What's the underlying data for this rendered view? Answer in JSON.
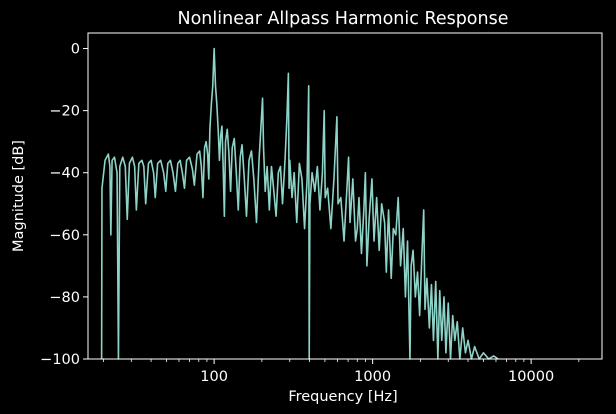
{
  "chart_data": {
    "type": "line",
    "title": "Nonlinear Allpass Harmonic Response",
    "xlabel": "Frequency [Hz]",
    "ylabel": "Magnitude [dB]",
    "xscale": "log",
    "xlim": [
      16,
      28000
    ],
    "ylim": [
      -100,
      5
    ],
    "xticks": [
      100,
      1000,
      10000
    ],
    "xtick_labels": [
      "100",
      "1000",
      "10000"
    ],
    "yticks": [
      0,
      -20,
      -40,
      -60,
      -80,
      -100
    ],
    "ytick_labels": [
      "0",
      "−20",
      "−40",
      "−60",
      "−80",
      "−100"
    ],
    "grid": false,
    "legend": null,
    "colors": {
      "background": "#000000",
      "axes": "#ffffff",
      "line": "#8dd3c7"
    },
    "series": [
      {
        "points": [
          [
            19.5,
            -100
          ],
          [
            19.6,
            -45
          ],
          [
            20.5,
            -36
          ],
          [
            21.5,
            -34
          ],
          [
            22,
            -38
          ],
          [
            22.3,
            -60
          ],
          [
            22.7,
            -36
          ],
          [
            23.5,
            -35
          ],
          [
            24.4,
            -40
          ],
          [
            24.9,
            -100
          ],
          [
            25.4,
            -38
          ],
          [
            26.5,
            -35
          ],
          [
            27.5,
            -38
          ],
          [
            28.3,
            -55
          ],
          [
            29.2,
            -37
          ],
          [
            30.5,
            -35
          ],
          [
            31.5,
            -38
          ],
          [
            32.3,
            -52
          ],
          [
            33.5,
            -37
          ],
          [
            35,
            -36
          ],
          [
            36,
            -38
          ],
          [
            37,
            -50
          ],
          [
            38.5,
            -37
          ],
          [
            40,
            -36
          ],
          [
            41.5,
            -40
          ],
          [
            42.5,
            -48
          ],
          [
            44,
            -37
          ],
          [
            46,
            -36
          ],
          [
            48,
            -40
          ],
          [
            49.5,
            -46
          ],
          [
            51,
            -37
          ],
          [
            53,
            -36
          ],
          [
            55,
            -40
          ],
          [
            57,
            -46
          ],
          [
            59,
            -37
          ],
          [
            61,
            -36
          ],
          [
            63,
            -40
          ],
          [
            65,
            -45
          ],
          [
            67,
            -36
          ],
          [
            70,
            -35
          ],
          [
            73,
            -39
          ],
          [
            75,
            -44
          ],
          [
            78,
            -34
          ],
          [
            81,
            -33
          ],
          [
            83,
            -38
          ],
          [
            85,
            -48
          ],
          [
            87,
            -32
          ],
          [
            89,
            -30
          ],
          [
            91,
            -34
          ],
          [
            92.5,
            -42
          ],
          [
            94,
            -26
          ],
          [
            96,
            -18
          ],
          [
            98,
            -12
          ],
          [
            100,
            0
          ],
          [
            102,
            -12
          ],
          [
            104,
            -18
          ],
          [
            106,
            -26
          ],
          [
            108,
            -36
          ],
          [
            110,
            -28
          ],
          [
            112,
            -25
          ],
          [
            114,
            -38
          ],
          [
            116,
            -54
          ],
          [
            118,
            -30
          ],
          [
            121,
            -26
          ],
          [
            124,
            -34
          ],
          [
            127,
            -46
          ],
          [
            130,
            -32
          ],
          [
            134,
            -29
          ],
          [
            138,
            -40
          ],
          [
            142,
            -52
          ],
          [
            146,
            -35
          ],
          [
            150,
            -31
          ],
          [
            155,
            -42
          ],
          [
            160,
            -54
          ],
          [
            166,
            -36
          ],
          [
            172,
            -33
          ],
          [
            178,
            -42
          ],
          [
            185,
            -56
          ],
          [
            192,
            -36
          ],
          [
            198,
            -24
          ],
          [
            202,
            -16
          ],
          [
            205,
            -32
          ],
          [
            210,
            -46
          ],
          [
            216,
            -38
          ],
          [
            223,
            -52
          ],
          [
            230,
            -38
          ],
          [
            238,
            -46
          ],
          [
            246,
            -54
          ],
          [
            254,
            -40
          ],
          [
            262,
            -38
          ],
          [
            270,
            -50
          ],
          [
            280,
            -36
          ],
          [
            288,
            -22
          ],
          [
            294,
            -8
          ],
          [
            297,
            -45
          ],
          [
            300,
            -36
          ],
          [
            310,
            -48
          ],
          [
            320,
            -40
          ],
          [
            332,
            -56
          ],
          [
            345,
            -37
          ],
          [
            358,
            -42
          ],
          [
            372,
            -58
          ],
          [
            386,
            -42
          ],
          [
            395,
            -12
          ],
          [
            398,
            -100
          ],
          [
            402,
            -50
          ],
          [
            415,
            -40
          ],
          [
            432,
            -46
          ],
          [
            448,
            -38
          ],
          [
            465,
            -52
          ],
          [
            482,
            -40
          ],
          [
            495,
            -20
          ],
          [
            502,
            -48
          ],
          [
            520,
            -45
          ],
          [
            545,
            -58
          ],
          [
            570,
            -42
          ],
          [
            595,
            -22
          ],
          [
            605,
            -50
          ],
          [
            630,
            -48
          ],
          [
            660,
            -62
          ],
          [
            690,
            -44
          ],
          [
            705,
            -35
          ],
          [
            720,
            -56
          ],
          [
            750,
            -42
          ],
          [
            780,
            -62
          ],
          [
            800,
            -58
          ],
          [
            820,
            -48
          ],
          [
            850,
            -66
          ],
          [
            880,
            -52
          ],
          [
            900,
            -40
          ],
          [
            920,
            -70
          ],
          [
            950,
            -55
          ],
          [
            990,
            -42
          ],
          [
            1020,
            -62
          ],
          [
            1060,
            -48
          ],
          [
            1100,
            -65
          ],
          [
            1140,
            -50
          ],
          [
            1190,
            -56
          ],
          [
            1220,
            -72
          ],
          [
            1260,
            -52
          ],
          [
            1310,
            -74
          ],
          [
            1350,
            -58
          ],
          [
            1400,
            -60
          ],
          [
            1450,
            -48
          ],
          [
            1500,
            -70
          ],
          [
            1560,
            -58
          ],
          [
            1610,
            -80
          ],
          [
            1660,
            -62
          ],
          [
            1720,
            -100
          ],
          [
            1750,
            -70
          ],
          [
            1800,
            -65
          ],
          [
            1860,
            -80
          ],
          [
            1920,
            -72
          ],
          [
            1980,
            -86
          ],
          [
            2040,
            -68
          ],
          [
            2100,
            -52
          ],
          [
            2140,
            -84
          ],
          [
            2200,
            -74
          ],
          [
            2280,
            -90
          ],
          [
            2350,
            -76
          ],
          [
            2420,
            -94
          ],
          [
            2500,
            -75
          ],
          [
            2580,
            -100
          ],
          [
            2650,
            -78
          ],
          [
            2730,
            -94
          ],
          [
            2820,
            -80
          ],
          [
            2900,
            -98
          ],
          [
            3000,
            -82
          ],
          [
            3100,
            -100
          ],
          [
            3200,
            -86
          ],
          [
            3300,
            -94
          ],
          [
            3420,
            -88
          ],
          [
            3550,
            -100
          ],
          [
            3700,
            -90
          ],
          [
            3850,
            -98
          ],
          [
            4000,
            -94
          ],
          [
            4200,
            -100
          ],
          [
            4400,
            -96
          ],
          [
            4700,
            -100
          ],
          [
            5000,
            -98
          ],
          [
            5400,
            -100
          ],
          [
            5800,
            -99
          ],
          [
            6200,
            -100
          ]
        ]
      }
    ]
  }
}
